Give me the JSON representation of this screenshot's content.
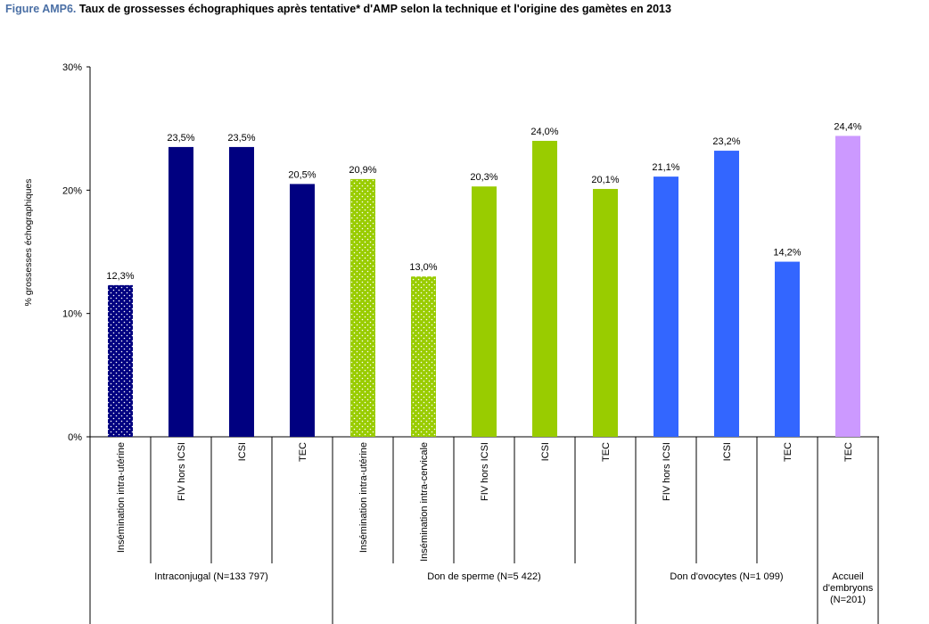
{
  "figure": {
    "prefix": "Figure AMP6.",
    "title": "Taux de grossesses échographiques après tentative* d'AMP selon la technique et l'origine des gamètes en 2013"
  },
  "chart_data": {
    "type": "bar",
    "title": "Taux de grossesses échographiques après tentative* d'AMP selon la technique et l'origine des gamètes en 2013",
    "ylabel": "% grossesses échographiques",
    "xlabel": "",
    "ylim": [
      0,
      30
    ],
    "yticks": [
      "0%",
      "10%",
      "20%",
      "30%"
    ],
    "ytick_values": [
      0,
      10,
      20,
      30
    ],
    "grid": false,
    "legend": "none",
    "groups": [
      {
        "name": "Intraconjugal (N=133 797)",
        "color": "#000080",
        "categories": [
          "Insémination intra-utérine",
          "FIV hors ICSI",
          "ICSI",
          "TEC"
        ],
        "values": [
          12.3,
          23.5,
          23.5,
          20.5
        ],
        "labels": [
          "12,3%",
          "23,5%",
          "23,5%",
          "20,5%"
        ],
        "patterned": [
          true,
          false,
          false,
          false
        ]
      },
      {
        "name": "Don de sperme (N=5 422)",
        "color": "#99cc00",
        "categories": [
          "Insémination intra-utérine",
          "Insémination intra-cervicale",
          "FIV hors ICSI",
          "ICSI",
          "TEC"
        ],
        "values": [
          20.9,
          13.0,
          20.3,
          24.0,
          20.1
        ],
        "labels": [
          "20,9%",
          "13,0%",
          "20,3%",
          "24,0%",
          "20,1%"
        ],
        "patterned": [
          true,
          true,
          false,
          false,
          false
        ]
      },
      {
        "name": "Don d'ovocytes (N=1 099)",
        "color": "#3366ff",
        "categories": [
          "FIV hors ICSI",
          "ICSI",
          "TEC"
        ],
        "values": [
          21.1,
          23.2,
          14.2
        ],
        "labels": [
          "21,1%",
          "23,2%",
          "14,2%"
        ],
        "patterned": [
          false,
          false,
          false
        ]
      },
      {
        "name": "Accueil d'embryons (N=201)",
        "name_lines": [
          "Accueil",
          "d'embryons",
          "(N=201)"
        ],
        "color": "#cc99ff",
        "categories": [
          "TEC"
        ],
        "values": [
          24.4
        ],
        "labels": [
          "24,4%"
        ],
        "patterned": [
          false
        ]
      }
    ]
  }
}
